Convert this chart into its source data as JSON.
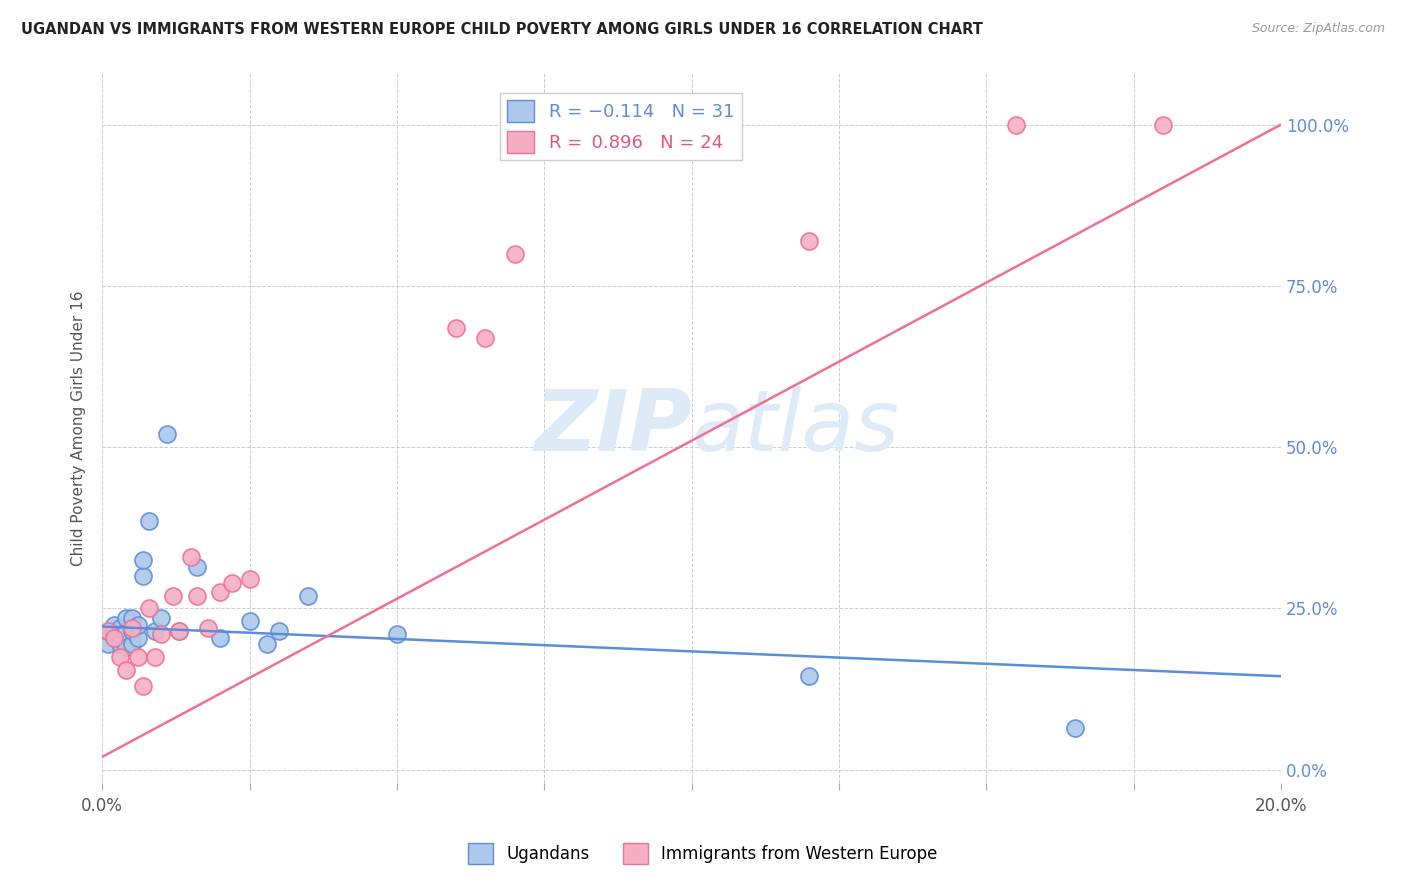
{
  "title": "UGANDAN VS IMMIGRANTS FROM WESTERN EUROPE CHILD POVERTY AMONG GIRLS UNDER 16 CORRELATION CHART",
  "source": "Source: ZipAtlas.com",
  "ylabel": "Child Poverty Among Girls Under 16",
  "xlim": [
    0.0,
    0.2
  ],
  "ylim": [
    -0.02,
    1.08
  ],
  "plot_ylim": [
    0.0,
    1.05
  ],
  "xticks": [
    0.0,
    0.025,
    0.05,
    0.075,
    0.1,
    0.125,
    0.15,
    0.175,
    0.2
  ],
  "xtick_labels": [
    "0.0%",
    "",
    "",
    "",
    "",
    "",
    "",
    "",
    "20.0%"
  ],
  "ytick_labels_right": [
    "0.0%",
    "25.0%",
    "50.0%",
    "75.0%",
    "100.0%"
  ],
  "yticks_right": [
    0.0,
    0.25,
    0.5,
    0.75,
    1.0
  ],
  "ugandan_color": "#adc8ea",
  "immigrant_color": "#f4afc5",
  "ugandan_line_color": "#5b8dd9",
  "immigrant_line_color": "#f07090",
  "watermark_color": "#ddeaf8",
  "ugandan_x": [
    0.001,
    0.001,
    0.002,
    0.002,
    0.003,
    0.003,
    0.003,
    0.004,
    0.004,
    0.004,
    0.005,
    0.005,
    0.005,
    0.006,
    0.006,
    0.007,
    0.007,
    0.008,
    0.009,
    0.01,
    0.011,
    0.013,
    0.016,
    0.02,
    0.025,
    0.028,
    0.03,
    0.035,
    0.05,
    0.12,
    0.165
  ],
  "ugandan_y": [
    0.195,
    0.215,
    0.215,
    0.225,
    0.195,
    0.21,
    0.22,
    0.19,
    0.215,
    0.235,
    0.195,
    0.215,
    0.235,
    0.205,
    0.225,
    0.3,
    0.325,
    0.385,
    0.215,
    0.235,
    0.52,
    0.215,
    0.315,
    0.205,
    0.23,
    0.195,
    0.215,
    0.27,
    0.21,
    0.145,
    0.065
  ],
  "immigrant_x": [
    0.001,
    0.002,
    0.003,
    0.004,
    0.005,
    0.006,
    0.007,
    0.008,
    0.009,
    0.01,
    0.012,
    0.013,
    0.015,
    0.016,
    0.018,
    0.02,
    0.022,
    0.025,
    0.06,
    0.065,
    0.07,
    0.12,
    0.155,
    0.18
  ],
  "immigrant_y": [
    0.215,
    0.205,
    0.175,
    0.155,
    0.22,
    0.175,
    0.13,
    0.25,
    0.175,
    0.21,
    0.27,
    0.215,
    0.33,
    0.27,
    0.22,
    0.275,
    0.29,
    0.295,
    0.685,
    0.67,
    0.8,
    0.82,
    1.0,
    1.0
  ],
  "ugandan_line_x": [
    0.0,
    0.2
  ],
  "ugandan_line_y": [
    0.222,
    0.145
  ],
  "immigrant_line_x": [
    0.0,
    0.2
  ],
  "immigrant_line_y": [
    0.02,
    1.0
  ]
}
